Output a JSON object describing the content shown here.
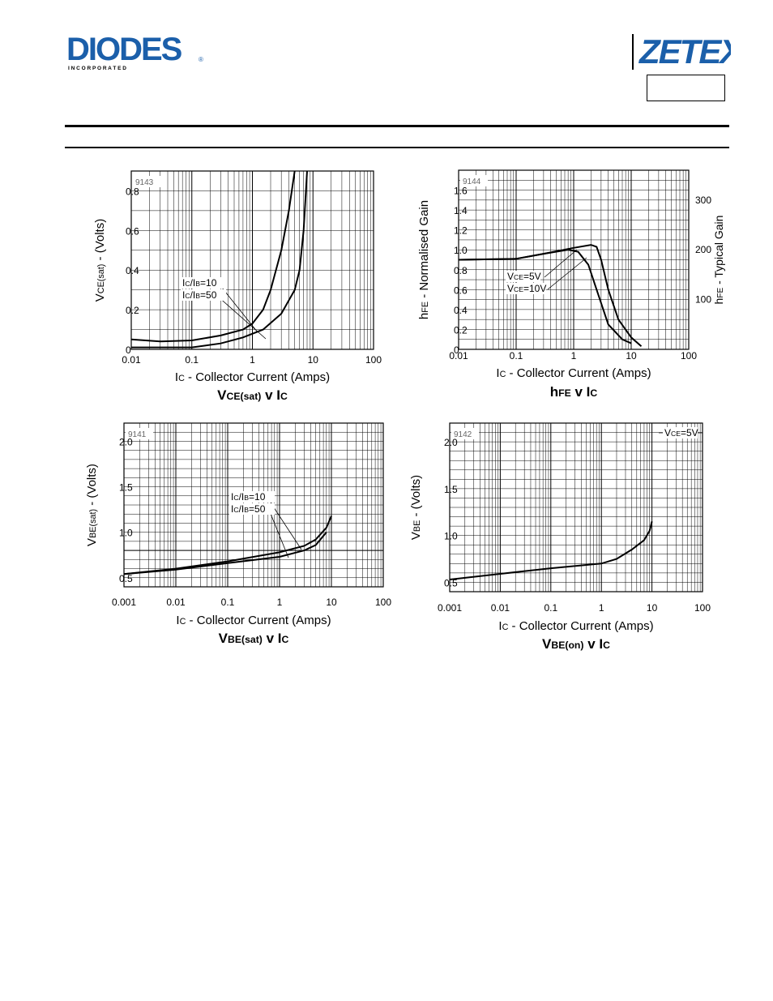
{
  "header": {
    "left_logo": {
      "text": "DIODES",
      "subtext": "I N C O R P O R A T E D",
      "registered": "®",
      "color": "#1b5faa"
    },
    "right_logo": {
      "text": "ZETEX",
      "color": "#1b5faa"
    },
    "part_box_text": ""
  },
  "chart_data": [
    {
      "id": "vce-sat",
      "type": "line",
      "figure_code": "9143",
      "title": "VCE(sat) v IC",
      "xlabel": "IC - Collector Current (Amps)",
      "ylabel": "VCE(sat) - (Volts)",
      "x_scale": "log",
      "xlim": [
        0.01,
        100
      ],
      "ylim": [
        0,
        0.9
      ],
      "xticks": [
        "0.01",
        "0.1",
        "1",
        "10",
        "100"
      ],
      "yticks": [
        "0",
        "0.2",
        "0.4",
        "0.6",
        "0.8"
      ],
      "ytick_values": [
        0,
        0.2,
        0.4,
        0.6,
        0.8
      ],
      "annotations": [
        "IC/IB=10",
        "IC/IB=50"
      ],
      "series": [
        {
          "name": "IC/IB=50",
          "points": [
            [
              0.01,
              0.05
            ],
            [
              0.03,
              0.04
            ],
            [
              0.1,
              0.045
            ],
            [
              0.3,
              0.07
            ],
            [
              0.7,
              0.1
            ],
            [
              1,
              0.13
            ],
            [
              1.5,
              0.2
            ],
            [
              2,
              0.3
            ],
            [
              3,
              0.5
            ],
            [
              4,
              0.7
            ],
            [
              5,
              0.9
            ]
          ]
        },
        {
          "name": "IC/IB=10",
          "points": [
            [
              0.01,
              0.01
            ],
            [
              0.1,
              0.01
            ],
            [
              0.3,
              0.03
            ],
            [
              0.7,
              0.06
            ],
            [
              1.5,
              0.1
            ],
            [
              3,
              0.18
            ],
            [
              5,
              0.3
            ],
            [
              6,
              0.4
            ],
            [
              7,
              0.6
            ],
            [
              8,
              0.9
            ]
          ]
        }
      ]
    },
    {
      "id": "hfe",
      "type": "line",
      "figure_code": "9144",
      "title": "hFE v IC",
      "xlabel": "IC - Collector Current (Amps)",
      "ylabel": "hFE - Normalised Gain",
      "ylabel_right": "hFE - Typical Gain",
      "x_scale": "log",
      "xlim": [
        0.01,
        100
      ],
      "ylim": [
        0,
        1.8
      ],
      "xticks": [
        "0.01",
        "0.1",
        "1",
        "10",
        "100"
      ],
      "yticks": [
        "0",
        "0.2",
        "0.4",
        "0.6",
        "0.8",
        "1.0",
        "1.2",
        "1.4",
        "1.6"
      ],
      "ytick_values": [
        0,
        0.2,
        0.4,
        0.6,
        0.8,
        1.0,
        1.2,
        1.4,
        1.6
      ],
      "yticks_right": [
        "100",
        "200",
        "300"
      ],
      "ytick_right_values": [
        0.5,
        1.0,
        1.5
      ],
      "annotations": [
        "VCE=5V",
        "VCE=10V"
      ],
      "series": [
        {
          "name": "VCE=10V",
          "points": [
            [
              0.01,
              0.9
            ],
            [
              0.1,
              0.91
            ],
            [
              0.3,
              0.96
            ],
            [
              1,
              1.02
            ],
            [
              2,
              1.05
            ],
            [
              2.5,
              1.03
            ],
            [
              3,
              0.9
            ],
            [
              4,
              0.6
            ],
            [
              6,
              0.3
            ],
            [
              10,
              0.12
            ],
            [
              15,
              0.03
            ]
          ]
        },
        {
          "name": "VCE=5V",
          "points": [
            [
              0.01,
              0.9
            ],
            [
              0.1,
              0.91
            ],
            [
              0.3,
              0.96
            ],
            [
              0.8,
              1.0
            ],
            [
              1.2,
              0.98
            ],
            [
              1.8,
              0.85
            ],
            [
              2.5,
              0.6
            ],
            [
              4,
              0.25
            ],
            [
              7,
              0.1
            ],
            [
              10,
              0.06
            ]
          ]
        }
      ]
    },
    {
      "id": "vbe-sat",
      "type": "line",
      "figure_code": "9141",
      "title": "VBE(sat) v IC",
      "xlabel": "IC - Collector Current (Amps)",
      "ylabel": "VBE(sat) - (Volts)",
      "x_scale": "log",
      "xlim": [
        0.001,
        100
      ],
      "ylim": [
        0.4,
        2.2
      ],
      "xticks": [
        "0.001",
        "0.01",
        "0.1",
        "1",
        "10",
        "100"
      ],
      "yticks": [
        "0.5",
        "1.0",
        "1.5",
        "2.0"
      ],
      "ytick_values": [
        0.5,
        1.0,
        1.5,
        2.0
      ],
      "annotations": [
        "IC/IB=10",
        "IC/IB=50"
      ],
      "series": [
        {
          "name": "IC/IB=10",
          "points": [
            [
              0.001,
              0.54
            ],
            [
              0.01,
              0.6
            ],
            [
              0.1,
              0.68
            ],
            [
              1,
              0.78
            ],
            [
              3,
              0.85
            ],
            [
              5,
              0.92
            ],
            [
              8,
              1.05
            ],
            [
              10,
              1.18
            ]
          ]
        },
        {
          "name": "IC/IB=50",
          "points": [
            [
              0.001,
              0.54
            ],
            [
              0.01,
              0.59
            ],
            [
              0.1,
              0.66
            ],
            [
              1,
              0.73
            ],
            [
              3,
              0.8
            ],
            [
              5,
              0.86
            ],
            [
              7,
              0.96
            ],
            [
              8,
              1.0
            ]
          ]
        }
      ]
    },
    {
      "id": "vbe-on",
      "type": "line",
      "figure_code": "9142",
      "title": "VBE(on) v IC",
      "xlabel": "IC - Collector Current (Amps)",
      "ylabel": "VBE - (Volts)",
      "x_scale": "log",
      "xlim": [
        0.001,
        100
      ],
      "ylim": [
        0.4,
        2.2
      ],
      "xticks": [
        "0.001",
        "0.01",
        "0.1",
        "1",
        "10",
        "100"
      ],
      "yticks": [
        "0.5",
        "1.0",
        "1.5",
        "2.0"
      ],
      "ytick_values": [
        0.5,
        1.0,
        1.5,
        2.0
      ],
      "annotations": [
        "VCE=5V"
      ],
      "series": [
        {
          "name": "VCE=5V",
          "points": [
            [
              0.001,
              0.53
            ],
            [
              0.01,
              0.59
            ],
            [
              0.1,
              0.65
            ],
            [
              1,
              0.7
            ],
            [
              2,
              0.75
            ],
            [
              4,
              0.85
            ],
            [
              7,
              0.95
            ],
            [
              9,
              1.05
            ],
            [
              10,
              1.15
            ]
          ]
        }
      ]
    }
  ]
}
